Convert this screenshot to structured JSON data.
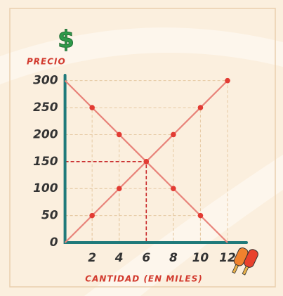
{
  "chart_data": {
    "type": "line",
    "y_label": "PRECIO",
    "x_label": "CANTIDAD (EN MILES)",
    "x": [
      0,
      2,
      4,
      6,
      8,
      10,
      12
    ],
    "series": [
      {
        "color": "#e8837a",
        "values": [
          300,
          250,
          200,
          150,
          100,
          50,
          0
        ]
      },
      {
        "color": "#e8837a",
        "values": [
          0,
          50,
          100,
          150,
          200,
          250,
          300
        ]
      }
    ],
    "marker_color": "#e23b33",
    "xlim": [
      0,
      13.4
    ],
    "ylim": [
      0,
      310
    ],
    "xticks": [
      2,
      4,
      6,
      8,
      10,
      12
    ],
    "yticks": [
      0,
      50,
      100,
      150,
      200,
      250,
      300
    ]
  }
}
